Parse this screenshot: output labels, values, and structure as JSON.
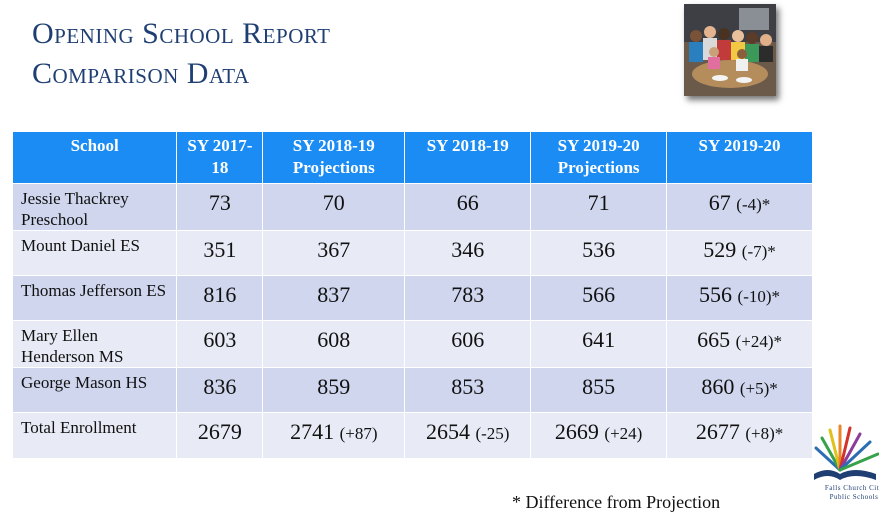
{
  "title": {
    "line1": "Opening School Report",
    "line2": "Comparison Data"
  },
  "table": {
    "headers": {
      "school": "School",
      "sy2017": "SY 2017-18",
      "proj2018": "SY 2018-19 Projections",
      "sy2018": "SY 2018-19",
      "proj2019": "SY 2019-20 Projections",
      "sy2019": "SY 2019-20"
    },
    "rows": [
      {
        "school": "Jessie Thackrey Preschool",
        "sy2017": "73",
        "proj2018": "70",
        "proj2018_diff": "",
        "sy2018": "66",
        "sy2018_diff": "",
        "proj2019": "71",
        "proj2019_diff": "",
        "sy2019": "67",
        "sy2019_diff": "(-4)*"
      },
      {
        "school": "Mount Daniel ES",
        "sy2017": "351",
        "proj2018": "367",
        "proj2018_diff": "",
        "sy2018": "346",
        "sy2018_diff": "",
        "proj2019": "536",
        "proj2019_diff": "",
        "sy2019": "529",
        "sy2019_diff": "(-7)*"
      },
      {
        "school": "Thomas Jefferson ES",
        "sy2017": "816",
        "proj2018": "837",
        "proj2018_diff": "",
        "sy2018": "783",
        "sy2018_diff": "",
        "proj2019": "566",
        "proj2019_diff": "",
        "sy2019": "556",
        "sy2019_diff": "(-10)*"
      },
      {
        "school": "Mary Ellen Henderson MS",
        "sy2017": "603",
        "proj2018": "608",
        "proj2018_diff": "",
        "sy2018": "606",
        "sy2018_diff": "",
        "proj2019": "641",
        "proj2019_diff": "",
        "sy2019": "665",
        "sy2019_diff": "(+24)*"
      },
      {
        "school": "George Mason HS",
        "sy2017": "836",
        "proj2018": "859",
        "proj2018_diff": "",
        "sy2018": "853",
        "sy2018_diff": "",
        "proj2019": "855",
        "proj2019_diff": "",
        "sy2019": "860",
        "sy2019_diff": "(+5)*"
      },
      {
        "school": "Total Enrollment",
        "sy2017": "2679",
        "proj2018": "2741",
        "proj2018_diff": "(+87)",
        "sy2018": "2654",
        "sy2018_diff": "(-25)",
        "proj2019": "2669",
        "proj2019_diff": "(+24)",
        "sy2019": "2677",
        "sy2019_diff": "(+8)*"
      }
    ]
  },
  "footnote": "* Difference from Projection",
  "logo": {
    "line1": "Falls Church City",
    "line2": "Public Schools"
  },
  "colors": {
    "header_bg": "#1b8cf3",
    "row_dark": "#cfd6ee",
    "row_light": "#e8ebf6",
    "title": "#1f3f73"
  }
}
